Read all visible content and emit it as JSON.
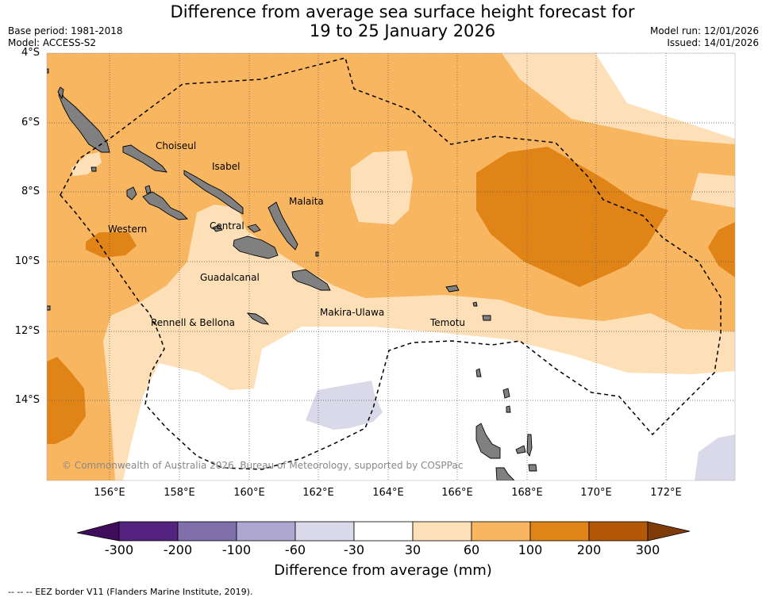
{
  "header": {
    "title_line1": "Difference from average sea surface height forecast for",
    "title_line2": "19 to 25 January 2026",
    "base_period": "Base period: 1981-2018",
    "model": "Model: ACCESS-S2",
    "model_run": "Model run: 12/01/2026",
    "issued": "Issued: 14/01/2026"
  },
  "map": {
    "lat_labels": [
      "4°S",
      "6°S",
      "8°S",
      "10°S",
      "12°S",
      "14°S"
    ],
    "lon_labels": [
      "156°E",
      "158°E",
      "160°E",
      "162°E",
      "164°E",
      "166°E",
      "168°E",
      "170°E",
      "172°E"
    ],
    "places": {
      "choiseul": "Choiseul",
      "isabel": "Isabel",
      "malaita": "Malaita",
      "western": "Western",
      "central": "Central",
      "guadalcanal": "Guadalcanal",
      "makira": "Makira-Ulawa",
      "rennell": "Rennell & Bellona",
      "temotu": "Temotu"
    },
    "copyright": "© Commonwealth of Australia 2026, Bureau of Meteorology, supported by COSPPac"
  },
  "colorbar": {
    "ticks": [
      "-300",
      "-200",
      "-100",
      "-60",
      "-30",
      "30",
      "60",
      "100",
      "200",
      "300"
    ],
    "colors": [
      "#3f0d5c",
      "#54237f",
      "#7f6fab",
      "#ada6d0",
      "#d9d9ea",
      "#ffffff",
      "#fde0b7",
      "#f9b661",
      "#e08418",
      "#b35807",
      "#7f3b08"
    ],
    "label": "Difference from average (mm)"
  },
  "footnote": "--  --  -- EEZ border V11 (Flanders Marine Institute, 2019)."
}
